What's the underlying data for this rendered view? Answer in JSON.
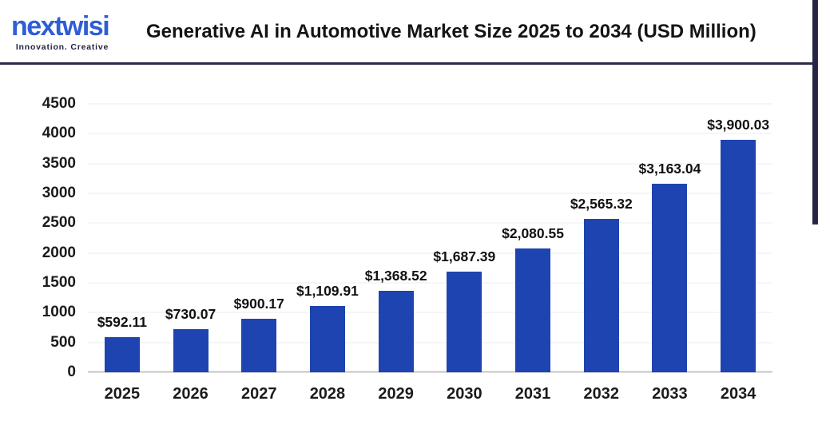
{
  "header": {
    "logo": {
      "name": "nextwisi",
      "tagline": "Innovation. Creative"
    },
    "title": "Generative AI in Automotive Market Size 2025 to 2034 (USD Million)"
  },
  "colors": {
    "bar": "#1d44b0",
    "logo_blue": "#2e5ed5",
    "divider_navy": "#2b2b4a",
    "grid": "#ececec",
    "axis_line": "#c4c4c4",
    "text": "#141414"
  },
  "chart_data": {
    "type": "bar",
    "title": "Generative AI in Automotive Market Size 2025 to 2034 (USD Million)",
    "categories": [
      "2025",
      "2026",
      "2027",
      "2028",
      "2029",
      "2030",
      "2031",
      "2032",
      "2033",
      "2034"
    ],
    "values": [
      592.11,
      730.07,
      900.17,
      1109.91,
      1368.52,
      1687.39,
      2080.55,
      2565.32,
      3163.04,
      3900.03
    ],
    "labels": [
      "$592.11",
      "$730.07",
      "$900.17",
      "$1,109.91",
      "$1,368.52",
      "$1,687.39",
      "$2,080.55",
      "$2,565.32",
      "$3,163.04",
      "$3,900.03"
    ],
    "xlabel": "",
    "ylabel": "",
    "ylim": [
      0,
      4500
    ],
    "ytick_step": 500,
    "yticks": [
      "0",
      "500",
      "1000",
      "1500",
      "2000",
      "2500",
      "3000",
      "3500",
      "4000",
      "4500"
    ],
    "grid": true,
    "legend": false,
    "bar_color": "#1d44b0"
  }
}
